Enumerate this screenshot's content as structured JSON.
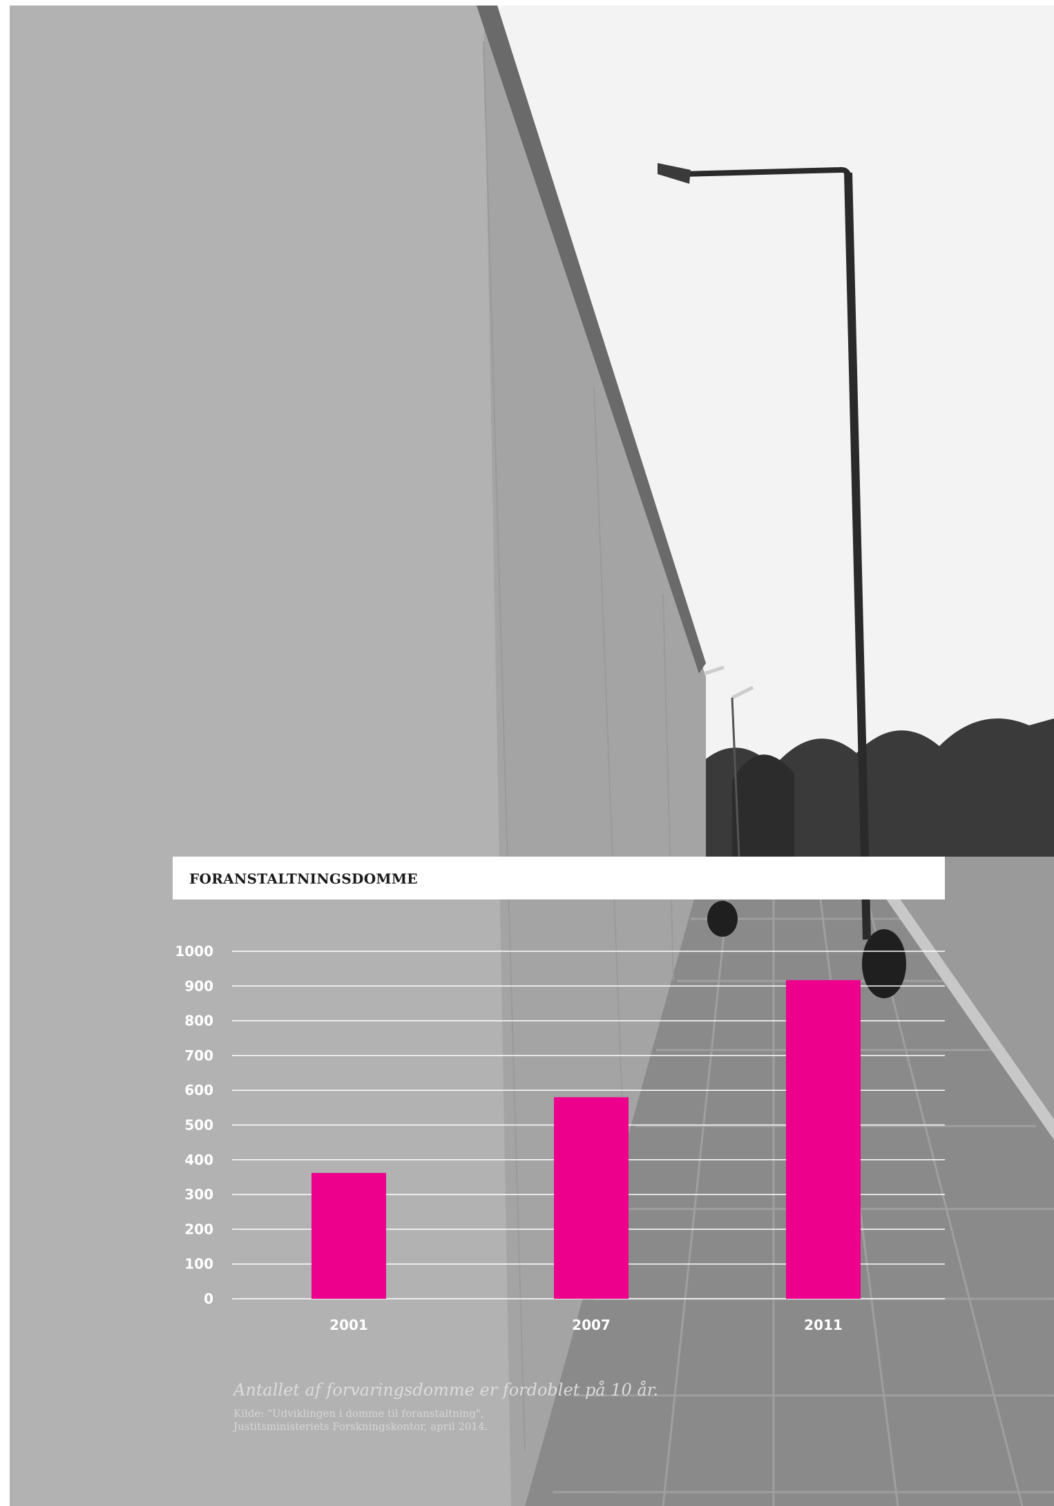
{
  "colors": {
    "bar": "#ec008c",
    "gridline": "#ffffff",
    "text_on_photo": "#ffffff"
  },
  "photo": {
    "icon": "prison-wall-photo",
    "description_visible": false
  },
  "chart_data": {
    "type": "bar",
    "title": "FORANSTALTNINGSDOMME",
    "categories": [
      "2001",
      "2007",
      "2011"
    ],
    "values": [
      362,
      580,
      917
    ],
    "ylim": [
      0,
      1000
    ],
    "yticks": [
      0,
      100,
      200,
      300,
      400,
      500,
      600,
      700,
      800,
      900,
      1000
    ],
    "grid": true,
    "legend": "none",
    "xlabel": "",
    "ylabel": ""
  },
  "caption": "Antallet af forvaringsdomme er fordoblet på 10 år.",
  "source": {
    "line1": "Kilde: \"Udviklingen i domme til foranstaltning\",",
    "line2": "Justitsministeriets Forskningskontor, april 2014."
  }
}
